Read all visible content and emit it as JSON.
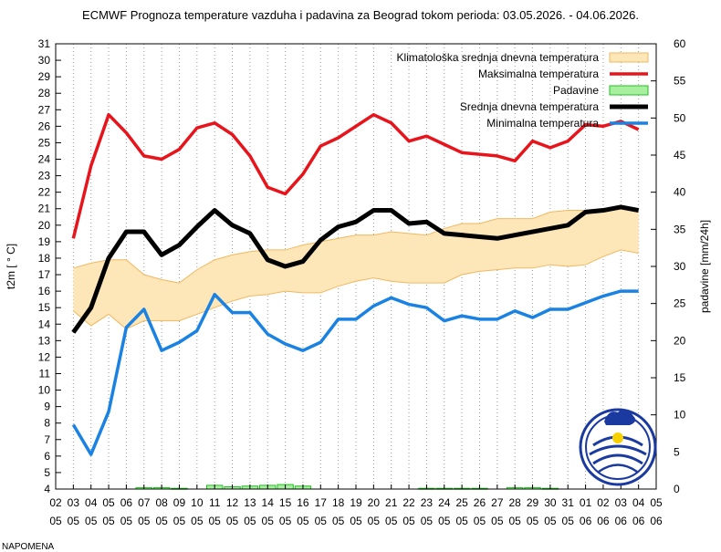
{
  "chart_data": {
    "type": "line",
    "title": "ECMWF Prognoza temperature vazduha i padavina za Beograd tokom perioda: 03.05.2026. - 04.06.2026.",
    "ylabel": "t2m [ ° C]",
    "y2label": "padavine [mm/24h]",
    "xlabel": "",
    "ylim": [
      4,
      31
    ],
    "y2lim": [
      0,
      60
    ],
    "grid": "vertical dotted lines at each day",
    "legend_position": "top-right",
    "x_day": [
      "02",
      "03",
      "04",
      "05",
      "06",
      "07",
      "08",
      "09",
      "10",
      "11",
      "12",
      "13",
      "14",
      "15",
      "16",
      "17",
      "18",
      "19",
      "20",
      "21",
      "22",
      "23",
      "24",
      "25",
      "26",
      "27",
      "28",
      "29",
      "30",
      "31",
      "01",
      "02",
      "03",
      "04",
      "05"
    ],
    "x_month": [
      "05",
      "05",
      "05",
      "05",
      "05",
      "05",
      "05",
      "05",
      "05",
      "05",
      "05",
      "05",
      "05",
      "05",
      "05",
      "05",
      "05",
      "05",
      "05",
      "05",
      "05",
      "05",
      "05",
      "05",
      "05",
      "05",
      "05",
      "05",
      "05",
      "05",
      "06",
      "06",
      "06",
      "06",
      "06"
    ],
    "series": [
      {
        "name": "Klimatološka srednja dnevna temperatura",
        "kind": "band",
        "color": "#fde6b8",
        "stroke": "#f0b860",
        "upper": [
          17.4,
          17.7,
          17.9,
          17.9,
          17.0,
          16.7,
          16.5,
          17.3,
          17.9,
          18.2,
          18.4,
          18.5,
          18.5,
          18.8,
          19.0,
          19.2,
          19.4,
          19.4,
          19.6,
          19.5,
          19.4,
          19.8,
          20.1,
          20.1,
          20.4,
          20.4,
          20.4,
          20.8,
          20.9,
          20.9,
          21.0,
          21.0,
          21.0
        ],
        "lower": [
          14.8,
          13.9,
          14.6,
          13.7,
          14.2,
          14.2,
          14.2,
          14.6,
          15.0,
          15.4,
          15.7,
          15.8,
          16.0,
          15.9,
          15.9,
          16.3,
          16.6,
          16.8,
          16.6,
          16.5,
          16.5,
          16.5,
          17.0,
          17.2,
          17.3,
          17.4,
          17.4,
          17.6,
          17.5,
          17.6,
          18.1,
          18.5,
          18.3
        ]
      },
      {
        "name": "Maksimalna temperatura",
        "kind": "line",
        "color": "#e8141c",
        "width": 3.5,
        "values": [
          19.2,
          23.6,
          26.7,
          25.6,
          24.2,
          24.0,
          24.6,
          25.9,
          26.2,
          25.5,
          24.2,
          22.3,
          21.9,
          23.1,
          24.8,
          25.3,
          26.0,
          26.7,
          26.2,
          25.1,
          25.4,
          24.9,
          24.4,
          24.3,
          24.2,
          23.9,
          25.1,
          24.7,
          25.1,
          26.1,
          26.0,
          26.3,
          25.8
        ]
      },
      {
        "name": "Padavine",
        "kind": "bar",
        "color": "#a8f0a0",
        "stroke": "#20c020",
        "axis": "right",
        "values": [
          0,
          0,
          0,
          0,
          0.2,
          0.2,
          0.1,
          0,
          0.5,
          0.3,
          0.4,
          0.5,
          0.6,
          0.4,
          0,
          0,
          0,
          0,
          0,
          0,
          0.1,
          0.1,
          0.1,
          0.1,
          0,
          0.2,
          0.2,
          0.1,
          0,
          0,
          0,
          0,
          0
        ]
      },
      {
        "name": "Srednja dnevna temperatura",
        "kind": "line",
        "color": "#000000",
        "width": 5,
        "values": [
          13.5,
          15.0,
          18.0,
          19.6,
          19.6,
          18.2,
          18.8,
          19.9,
          20.9,
          20.0,
          19.5,
          17.9,
          17.5,
          17.8,
          19.1,
          19.9,
          20.2,
          20.9,
          20.9,
          20.1,
          20.2,
          19.5,
          19.4,
          19.3,
          19.2,
          19.4,
          19.6,
          19.8,
          20.0,
          20.8,
          20.9,
          21.1,
          20.9
        ]
      },
      {
        "name": "Minimalna temperatura",
        "kind": "line",
        "color": "#1a82e2",
        "width": 3.5,
        "values": [
          7.9,
          6.1,
          8.7,
          13.8,
          14.9,
          12.4,
          12.9,
          13.6,
          15.8,
          14.7,
          14.7,
          13.4,
          12.8,
          12.4,
          12.9,
          14.3,
          14.3,
          15.1,
          15.6,
          15.2,
          15.0,
          14.2,
          14.5,
          14.3,
          14.3,
          14.8,
          14.4,
          14.9,
          14.9,
          15.3,
          15.7,
          16.0,
          16.0
        ]
      }
    ]
  },
  "footer_note": "NAPOMENA"
}
